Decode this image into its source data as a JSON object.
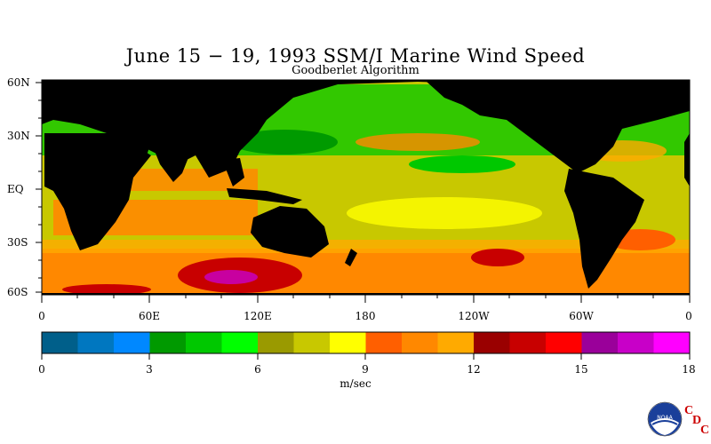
{
  "title": "June 15 − 19, 1993 SSM/I Marine Wind Speed",
  "subtitle": "Goodberlet Algorithm",
  "map": {
    "lat_labels": [
      "60N",
      "30N",
      "EQ",
      "30S",
      "60S"
    ],
    "lon_labels": [
      "0",
      "60E",
      "120E",
      "180",
      "120W",
      "60W",
      "0"
    ],
    "land_color": "#000000"
  },
  "colorbar": {
    "units": "m/sec",
    "tick_labels": [
      "0",
      "3",
      "6",
      "9",
      "12",
      "15",
      "18"
    ],
    "range": [
      0,
      18
    ],
    "colors": [
      "#005f8a",
      "#0077c0",
      "#0088ff",
      "#009a00",
      "#00c800",
      "#00ff00",
      "#9a9a00",
      "#c8c800",
      "#ffff00",
      "#ff5f00",
      "#ff8800",
      "#ffaa00",
      "#9a0000",
      "#c80000",
      "#ff0000",
      "#9a009a",
      "#c800c8",
      "#ff00ff"
    ]
  },
  "logo": {
    "text": "NOAA",
    "letters": [
      "C",
      "D",
      "C"
    ]
  }
}
